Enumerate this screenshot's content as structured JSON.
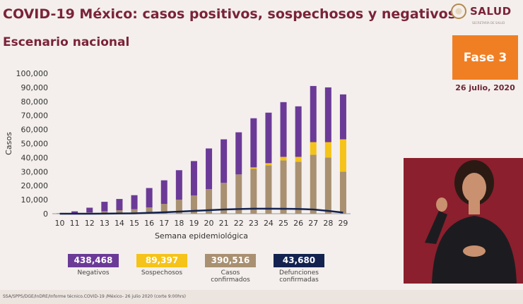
{
  "header": {
    "title": "COVID-19 México: casos positivos, sospechosos y negativos",
    "subtitle": "Escenario nacional",
    "logo_text": "SALUD",
    "logo_subtext": "SECRETARÍA DE SALUD"
  },
  "phase": {
    "label": "Fase 3",
    "date": "26 julio, 2020"
  },
  "colors": {
    "negativos": "#6b3a97",
    "sospechosos": "#f5c319",
    "confirmados": "#a89071",
    "defunciones": "#13224f",
    "accent": "#f07f24"
  },
  "chart_data": {
    "type": "bar",
    "stacked": true,
    "xlabel": "Semana epidemiológica",
    "ylabel": "Casos",
    "ylim": [
      0,
      100000
    ],
    "y_ticks": [
      "0",
      "10,000",
      "20,000",
      "30,000",
      "40,000",
      "50,000",
      "60,000",
      "70,000",
      "80,000",
      "90,000",
      "100,000"
    ],
    "categories": [
      "10",
      "11",
      "12",
      "13",
      "14",
      "15",
      "16",
      "17",
      "18",
      "19",
      "20",
      "21",
      "22",
      "23",
      "24",
      "25",
      "26",
      "27",
      "28",
      "29"
    ],
    "series": [
      {
        "name": "Casos confirmados",
        "values": [
          100,
          300,
          900,
          1800,
          2500,
          3200,
          4500,
          7000,
          10000,
          13000,
          17500,
          22000,
          28000,
          32000,
          34500,
          38000,
          37000,
          42000,
          40000,
          30000
        ]
      },
      {
        "name": "Sospechosos",
        "values": [
          0,
          0,
          0,
          0,
          0,
          0,
          0,
          0,
          0,
          0,
          0,
          0,
          0,
          1000,
          1500,
          2500,
          3500,
          9000,
          11000,
          23000
        ]
      },
      {
        "name": "Negativos",
        "values": [
          200,
          1400,
          3400,
          6700,
          8000,
          10000,
          13800,
          16800,
          21000,
          24500,
          29000,
          31000,
          30000,
          35000,
          36000,
          39000,
          36000,
          40000,
          39000,
          32000
        ]
      },
      {
        "name": "Defunciones confirmadas",
        "type": "line",
        "values": [
          0,
          0,
          20,
          70,
          180,
          280,
          600,
          1000,
          1500,
          2000,
          2500,
          3000,
          3300,
          3600,
          3600,
          3500,
          3400,
          3000,
          2000,
          800
        ]
      }
    ]
  },
  "stats": [
    {
      "value": "438,468",
      "label": "Negativos",
      "color": "#6b3a97"
    },
    {
      "value": "89,397",
      "label": "Sospechosos",
      "color": "#f5c319"
    },
    {
      "value": "390,516",
      "label": "Casos confirmados",
      "color": "#a89071"
    },
    {
      "value": "43,680",
      "label": "Defunciones confirmadas",
      "color": "#13224f"
    }
  ],
  "footer": {
    "source": "SSA/SPPS/DGE/InDRE/Informe técnico.COVID-19 /México- 26 julio 2020 (corte 9:00hrs)"
  }
}
